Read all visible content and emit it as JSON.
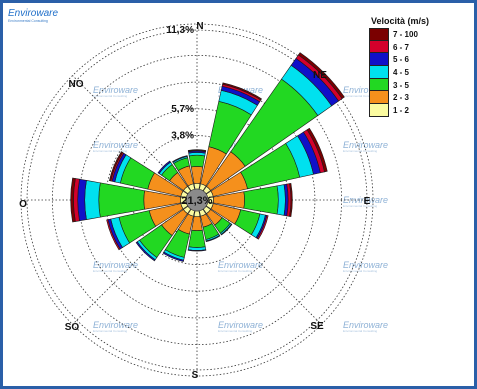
{
  "brand": {
    "name": "Enviroware",
    "tagline": "Environmental Consulting"
  },
  "watermark": {
    "name": "Enviroware",
    "tagline": "Environmental Consulting"
  },
  "chart_data": {
    "type": "windrose",
    "title": "",
    "legend": {
      "title": "Velocità (m/s)",
      "placement": "top-right",
      "bins": [
        {
          "label": "7 - 100",
          "color": "#7a0000"
        },
        {
          "label": "6 - 7",
          "color": "#d4002b"
        },
        {
          "label": "5 - 6",
          "color": "#1010c8"
        },
        {
          "label": "4 - 5",
          "color": "#00e1ef"
        },
        {
          "label": "3 - 5",
          "color": "#22d822"
        },
        {
          "label": "2 - 3",
          "color": "#f5901c"
        },
        {
          "label": "1 - 2",
          "color": "#fbfba0"
        }
      ]
    },
    "directions": [
      "N",
      "NNE",
      "NE",
      "ENE",
      "E",
      "ESE",
      "SE",
      "SSE",
      "S",
      "SSW",
      "SW",
      "WSW",
      "W",
      "WNW",
      "NW",
      "NNW"
    ],
    "compass_labels": [
      {
        "dir": "N",
        "label": "N",
        "angle": 0
      },
      {
        "dir": "NE",
        "label": "NE",
        "angle": 45
      },
      {
        "dir": "E",
        "label": "E",
        "angle": 90
      },
      {
        "dir": "SE",
        "label": "SE",
        "angle": 135
      },
      {
        "dir": "S",
        "label": "S",
        "angle": 180
      },
      {
        "dir": "SO",
        "label": "SO",
        "angle": 225
      },
      {
        "dir": "O",
        "label": "O",
        "angle": 270
      },
      {
        "dir": "NO",
        "label": "NO",
        "angle": 315
      }
    ],
    "calm_label": "21,3%",
    "calm_percent": 21.3,
    "rings": [
      {
        "label": "",
        "value": 1.9
      },
      {
        "label": "3,8%",
        "value": 3.8
      },
      {
        "label": "5,7%",
        "value": 5.7
      },
      {
        "label": "",
        "value": 7.6
      },
      {
        "label": "",
        "value": 9.5
      },
      {
        "label": "11,3%",
        "value": 11.3
      }
    ],
    "rmax": 11.8,
    "series_order_from_center": [
      "1 - 2",
      "2 - 3",
      "3 - 5",
      "4 - 5",
      "5 - 6",
      "6 - 7",
      "7 - 100"
    ],
    "sectors": [
      {
        "dir": "N",
        "values": [
          0.4,
          1.2,
          0.8,
          0.2,
          0.1,
          0.05,
          0.05
        ]
      },
      {
        "dir": "NNE",
        "values": [
          0.4,
          2.7,
          3.3,
          0.8,
          0.3,
          0.15,
          0.1
        ]
      },
      {
        "dir": "NE",
        "values": [
          0.4,
          3.0,
          6.3,
          1.2,
          0.6,
          0.3,
          0.2
        ]
      },
      {
        "dir": "ENE",
        "values": [
          0.4,
          2.5,
          3.8,
          1.0,
          0.5,
          0.3,
          0.2
        ]
      },
      {
        "dir": "E",
        "values": [
          0.4,
          2.2,
          2.4,
          0.5,
          0.2,
          0.2,
          0.1
        ]
      },
      {
        "dir": "ESE",
        "values": [
          0.4,
          2.0,
          1.4,
          0.4,
          0.1,
          0.1,
          0.0
        ]
      },
      {
        "dir": "SE",
        "values": [
          0.4,
          1.0,
          0.7,
          0.1,
          0.05,
          0.0,
          0.0
        ]
      },
      {
        "dir": "SSE",
        "values": [
          0.4,
          0.8,
          0.9,
          0.1,
          0.05,
          0.0,
          0.0
        ]
      },
      {
        "dir": "S",
        "values": [
          0.4,
          1.0,
          1.2,
          0.2,
          0.05,
          0.0,
          0.0
        ]
      },
      {
        "dir": "SSW",
        "values": [
          0.4,
          1.3,
          1.7,
          0.2,
          0.1,
          0.0,
          0.0
        ]
      },
      {
        "dir": "SW",
        "values": [
          0.4,
          1.9,
          1.9,
          0.2,
          0.1,
          0.0,
          0.0
        ]
      },
      {
        "dir": "WSW",
        "values": [
          0.4,
          2.3,
          2.2,
          0.6,
          0.2,
          0.1,
          0.0
        ]
      },
      {
        "dir": "W",
        "values": [
          0.4,
          2.6,
          3.2,
          1.0,
          0.5,
          0.3,
          0.2
        ]
      },
      {
        "dir": "WNW",
        "values": [
          0.4,
          2.4,
          2.0,
          0.4,
          0.2,
          0.1,
          0.1
        ]
      },
      {
        "dir": "NW",
        "values": [
          0.4,
          1.2,
          0.7,
          0.2,
          0.1,
          0.0,
          0.0
        ]
      },
      {
        "dir": "NNW",
        "values": [
          0.4,
          1.3,
          0.6,
          0.1,
          0.05,
          0.0,
          0.0
        ]
      }
    ]
  }
}
